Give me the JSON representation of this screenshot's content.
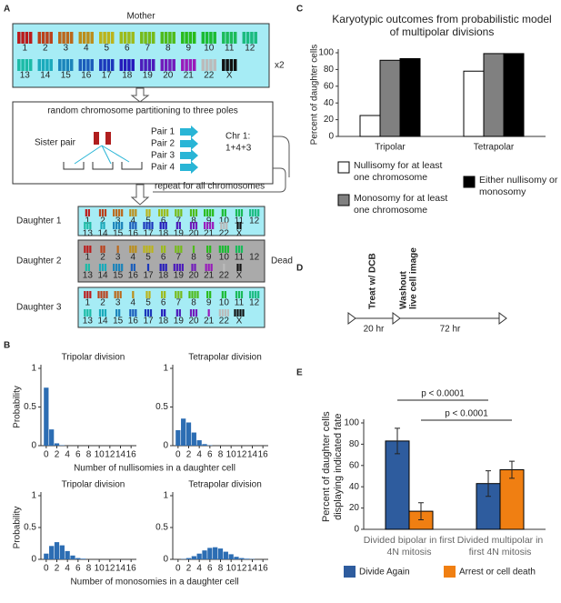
{
  "panel_labels": [
    "A",
    "B",
    "C",
    "D",
    "E"
  ],
  "diagram": {
    "mother_label": "Mother",
    "copies": "x2",
    "chromosomes": [
      "1",
      "2",
      "3",
      "4",
      "5",
      "6",
      "7",
      "8",
      "9",
      "10",
      "11",
      "12",
      "13",
      "14",
      "15",
      "16",
      "17",
      "18",
      "19",
      "20",
      "21",
      "22",
      "X"
    ],
    "partition_title": "random chromosome partitioning to three poles",
    "sister_pair": "Sister pair",
    "pairs": [
      "Pair 1",
      "Pair 2",
      "Pair 3",
      "Pair 4"
    ],
    "chr_label": "Chr 1:",
    "chr_sum": "1+4+3",
    "repeat": "repeat for all chromosomes",
    "daughters": [
      "Daughter 1",
      "Daughter 2",
      "Daughter 3"
    ],
    "dead": "Dead"
  },
  "timeline": {
    "treat": "Treat w/ DCB",
    "washout": "Washout",
    "live": "live cell image",
    "durations": [
      "20 hr",
      "72 hr"
    ]
  },
  "chart_data": [
    {
      "type": "bar",
      "title": "Tripolar division",
      "ylabel": "Probability",
      "xlabel": "Number of nullisomies in a daughter cell",
      "color": "#2c6db3",
      "x": [
        0,
        1,
        2,
        3,
        4,
        5,
        6,
        7,
        8,
        9,
        10,
        11,
        12,
        13,
        14,
        15,
        16
      ],
      "values": [
        0.75,
        0.21,
        0.03,
        0.005,
        0,
        0,
        0,
        0,
        0,
        0,
        0,
        0,
        0,
        0,
        0,
        0,
        0
      ],
      "xlim": [
        -1,
        17
      ],
      "xticks": [
        0,
        2,
        4,
        6,
        8,
        10,
        12,
        14,
        16
      ],
      "ylim": [
        0,
        1
      ],
      "yticks": [
        0,
        0.5,
        1
      ]
    },
    {
      "type": "bar",
      "title": "Tetrapolar division",
      "color": "#2c6db3",
      "x": [
        0,
        1,
        2,
        3,
        4,
        5,
        6,
        7,
        8,
        9,
        10,
        11,
        12,
        13,
        14,
        15,
        16
      ],
      "values": [
        0.2,
        0.35,
        0.3,
        0.17,
        0.07,
        0.02,
        0.005,
        0,
        0,
        0,
        0,
        0,
        0,
        0,
        0,
        0,
        0
      ],
      "xlim": [
        -1,
        17
      ],
      "xticks": [
        0,
        2,
        4,
        6,
        8,
        10,
        12,
        14,
        16
      ],
      "ylim": [
        0,
        1
      ],
      "yticks": [
        0,
        0.5,
        1
      ]
    },
    {
      "type": "bar",
      "title": "Tripolar division",
      "ylabel": "Probability",
      "xlabel": "Number of monosomies in a daughter cell",
      "color": "#2c6db3",
      "x": [
        0,
        1,
        2,
        3,
        4,
        5,
        6,
        7,
        8,
        9,
        10,
        11,
        12,
        13,
        14,
        15,
        16
      ],
      "values": [
        0.09,
        0.21,
        0.27,
        0.22,
        0.13,
        0.06,
        0.02,
        0.01,
        0,
        0,
        0,
        0,
        0,
        0,
        0,
        0,
        0
      ],
      "xlim": [
        -1,
        17
      ],
      "xticks": [
        0,
        2,
        4,
        6,
        8,
        10,
        12,
        14,
        16
      ],
      "ylim": [
        0,
        1
      ],
      "yticks": [
        0,
        0.5,
        1
      ]
    },
    {
      "type": "bar",
      "title": "Tetrapolar division",
      "color": "#2c6db3",
      "x": [
        0,
        1,
        2,
        3,
        4,
        5,
        6,
        7,
        8,
        9,
        10,
        11,
        12,
        13,
        14,
        15,
        16
      ],
      "values": [
        0,
        0.005,
        0.02,
        0.05,
        0.09,
        0.14,
        0.18,
        0.19,
        0.17,
        0.12,
        0.08,
        0.04,
        0.02,
        0.01,
        0.005,
        0,
        0
      ],
      "xlim": [
        -1,
        17
      ],
      "xticks": [
        0,
        2,
        4,
        6,
        8,
        10,
        12,
        14,
        16
      ],
      "ylim": [
        0,
        1
      ],
      "yticks": [
        0,
        0.5,
        1
      ]
    },
    {
      "type": "bar",
      "title": "Karyotypic outcomes from probabilistic model of multipolar divisions",
      "ylabel": "Percent of daughter cells",
      "categories": [
        "Tripolar",
        "Tetrapolar"
      ],
      "series": [
        {
          "name": "Nullisomy for at least one chromosome",
          "color": "#ffffff",
          "values": [
            25,
            78
          ]
        },
        {
          "name": "Monosomy for at least one chromosome",
          "color": "#808080",
          "values": [
            91,
            99
          ]
        },
        {
          "name": "Either nullisomy or monosomy",
          "color": "#000000",
          "values": [
            93,
            99
          ]
        }
      ],
      "ylim": [
        0,
        100
      ],
      "yticks": [
        0,
        20,
        40,
        60,
        80,
        100
      ]
    },
    {
      "type": "bar",
      "ylabel": "Percent of daughter cells displaying indicated fate",
      "categories": [
        "Divided bipolar in first 4N mitosis",
        "Divided multipolar in first 4N mitosis"
      ],
      "series": [
        {
          "name": "Divide Again",
          "color": "#2e5c9e",
          "values": [
            83,
            43
          ],
          "errors": [
            12,
            12
          ]
        },
        {
          "name": "Arrest or cell death",
          "color": "#f07f12",
          "values": [
            17,
            56
          ],
          "errors": [
            8,
            8
          ]
        }
      ],
      "annotations": [
        "p < 0.0001",
        "p < 0.0001"
      ],
      "ylim": [
        0,
        100
      ],
      "yticks": [
        0,
        20,
        40,
        60,
        80,
        100
      ]
    }
  ]
}
